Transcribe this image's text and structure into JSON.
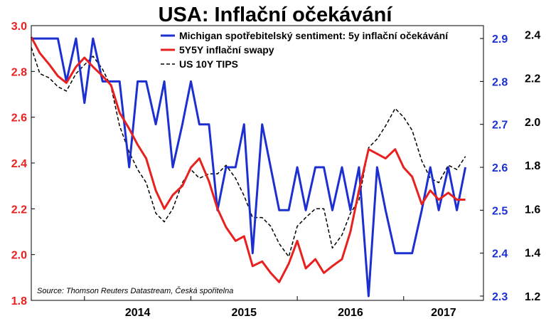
{
  "chart_data": {
    "type": "line",
    "title": "USA: Inflační očekávání",
    "source": "Source: Thomson Reuters Datastream, Česká spořitelna",
    "x_ticks": [
      "2014",
      "2015",
      "2016",
      "2017"
    ],
    "x_range": [
      2013.5,
      2017.75
    ],
    "axes": {
      "left": {
        "ticks": [
          "1.8",
          "2.0",
          "2.2",
          "2.4",
          "2.6",
          "2.8",
          "3.0"
        ],
        "range": [
          1.8,
          3.0
        ],
        "color": "#e8201e"
      },
      "right1": {
        "ticks": [
          "2.3",
          "2.4",
          "2.5",
          "2.6",
          "2.7",
          "2.8",
          "2.9"
        ],
        "range": [
          2.29,
          2.93
        ],
        "color": "#1c2fd1"
      },
      "right2": {
        "ticks": [
          "1.2",
          "1.4",
          "1.6",
          "1.8",
          "2.0",
          "2.2",
          "2.4"
        ],
        "range": [
          1.18,
          2.44
        ],
        "color": "#000000"
      }
    },
    "legend_position": "top-right",
    "grid": false,
    "series": [
      {
        "name": "Michigan spotřebitelský sentiment: 5y inflační očekávání",
        "axis": "right1",
        "color": "#1c2fd1",
        "style": "solid",
        "points": [
          [
            2013.5,
            2.9
          ],
          [
            2013.75,
            2.9
          ],
          [
            2013.83,
            2.8
          ],
          [
            2013.92,
            2.9
          ],
          [
            2014.0,
            2.75
          ],
          [
            2014.08,
            2.9
          ],
          [
            2014.17,
            2.8
          ],
          [
            2014.25,
            2.8
          ],
          [
            2014.33,
            2.8
          ],
          [
            2014.42,
            2.6
          ],
          [
            2014.5,
            2.8
          ],
          [
            2014.58,
            2.8
          ],
          [
            2014.67,
            2.7
          ],
          [
            2014.75,
            2.8
          ],
          [
            2014.83,
            2.6
          ],
          [
            2014.92,
            2.7
          ],
          [
            2015.0,
            2.8
          ],
          [
            2015.08,
            2.7
          ],
          [
            2015.17,
            2.7
          ],
          [
            2015.25,
            2.5
          ],
          [
            2015.33,
            2.6
          ],
          [
            2015.42,
            2.6
          ],
          [
            2015.5,
            2.7
          ],
          [
            2015.58,
            2.4
          ],
          [
            2015.67,
            2.7
          ],
          [
            2015.75,
            2.6
          ],
          [
            2015.83,
            2.5
          ],
          [
            2015.92,
            2.5
          ],
          [
            2016.0,
            2.6
          ],
          [
            2016.08,
            2.5
          ],
          [
            2016.17,
            2.6
          ],
          [
            2016.25,
            2.6
          ],
          [
            2016.33,
            2.5
          ],
          [
            2016.42,
            2.6
          ],
          [
            2016.5,
            2.5
          ],
          [
            2016.58,
            2.6
          ],
          [
            2016.67,
            2.3
          ],
          [
            2016.75,
            2.6
          ],
          [
            2016.83,
            2.5
          ],
          [
            2016.92,
            2.4
          ],
          [
            2017.0,
            2.4
          ],
          [
            2017.08,
            2.4
          ],
          [
            2017.17,
            2.5
          ],
          [
            2017.25,
            2.6
          ],
          [
            2017.33,
            2.5
          ],
          [
            2017.42,
            2.6
          ],
          [
            2017.5,
            2.5
          ],
          [
            2017.58,
            2.6
          ]
        ]
      },
      {
        "name": "5Y5Y inflační swapy",
        "axis": "left",
        "color": "#e8201e",
        "style": "solid",
        "points": [
          [
            2013.5,
            2.95
          ],
          [
            2013.58,
            2.88
          ],
          [
            2013.67,
            2.83
          ],
          [
            2013.75,
            2.78
          ],
          [
            2013.83,
            2.75
          ],
          [
            2013.92,
            2.82
          ],
          [
            2014.0,
            2.86
          ],
          [
            2014.08,
            2.82
          ],
          [
            2014.17,
            2.78
          ],
          [
            2014.25,
            2.74
          ],
          [
            2014.33,
            2.62
          ],
          [
            2014.42,
            2.55
          ],
          [
            2014.5,
            2.48
          ],
          [
            2014.58,
            2.42
          ],
          [
            2014.67,
            2.28
          ],
          [
            2014.75,
            2.2
          ],
          [
            2014.83,
            2.26
          ],
          [
            2014.92,
            2.3
          ],
          [
            2015.0,
            2.38
          ],
          [
            2015.08,
            2.42
          ],
          [
            2015.17,
            2.32
          ],
          [
            2015.25,
            2.2
          ],
          [
            2015.33,
            2.12
          ],
          [
            2015.42,
            2.06
          ],
          [
            2015.5,
            2.08
          ],
          [
            2015.58,
            1.95
          ],
          [
            2015.67,
            1.97
          ],
          [
            2015.75,
            1.92
          ],
          [
            2015.83,
            1.88
          ],
          [
            2015.92,
            1.96
          ],
          [
            2016.0,
            2.06
          ],
          [
            2016.08,
            1.94
          ],
          [
            2016.17,
            1.98
          ],
          [
            2016.25,
            1.92
          ],
          [
            2016.33,
            1.95
          ],
          [
            2016.42,
            1.98
          ],
          [
            2016.5,
            2.1
          ],
          [
            2016.58,
            2.28
          ],
          [
            2016.67,
            2.46
          ],
          [
            2016.75,
            2.44
          ],
          [
            2016.83,
            2.42
          ],
          [
            2016.92,
            2.46
          ],
          [
            2017.0,
            2.38
          ],
          [
            2017.08,
            2.34
          ],
          [
            2017.17,
            2.22
          ],
          [
            2017.25,
            2.28
          ],
          [
            2017.33,
            2.24
          ],
          [
            2017.42,
            2.27
          ],
          [
            2017.5,
            2.24
          ],
          [
            2017.58,
            2.24
          ]
        ]
      },
      {
        "name": "US 10Y TIPS",
        "axis": "right2",
        "color": "#000000",
        "style": "dashed",
        "points": [
          [
            2013.5,
            2.34
          ],
          [
            2013.58,
            2.22
          ],
          [
            2013.67,
            2.2
          ],
          [
            2013.75,
            2.16
          ],
          [
            2013.83,
            2.14
          ],
          [
            2013.92,
            2.22
          ],
          [
            2014.0,
            2.26
          ],
          [
            2014.08,
            2.3
          ],
          [
            2014.17,
            2.24
          ],
          [
            2014.25,
            2.16
          ],
          [
            2014.33,
            1.98
          ],
          [
            2014.42,
            1.86
          ],
          [
            2014.5,
            1.78
          ],
          [
            2014.58,
            1.72
          ],
          [
            2014.67,
            1.58
          ],
          [
            2014.75,
            1.54
          ],
          [
            2014.83,
            1.6
          ],
          [
            2014.92,
            1.72
          ],
          [
            2015.0,
            1.78
          ],
          [
            2015.08,
            1.74
          ],
          [
            2015.17,
            1.76
          ],
          [
            2015.25,
            1.76
          ],
          [
            2015.33,
            1.8
          ],
          [
            2015.42,
            1.74
          ],
          [
            2015.5,
            1.66
          ],
          [
            2015.58,
            1.56
          ],
          [
            2015.67,
            1.56
          ],
          [
            2015.75,
            1.52
          ],
          [
            2015.83,
            1.44
          ],
          [
            2015.92,
            1.38
          ],
          [
            2016.0,
            1.52
          ],
          [
            2016.08,
            1.56
          ],
          [
            2016.17,
            1.6
          ],
          [
            2016.25,
            1.6
          ],
          [
            2016.33,
            1.42
          ],
          [
            2016.42,
            1.48
          ],
          [
            2016.5,
            1.58
          ],
          [
            2016.58,
            1.64
          ],
          [
            2016.67,
            1.88
          ],
          [
            2016.75,
            1.92
          ],
          [
            2016.83,
            1.98
          ],
          [
            2016.92,
            2.06
          ],
          [
            2017.0,
            2.02
          ],
          [
            2017.08,
            1.96
          ],
          [
            2017.17,
            1.82
          ],
          [
            2017.25,
            1.74
          ],
          [
            2017.33,
            1.72
          ],
          [
            2017.42,
            1.8
          ],
          [
            2017.5,
            1.78
          ],
          [
            2017.58,
            1.84
          ]
        ]
      }
    ]
  },
  "colors": {
    "michigan_line": "#1c2fd1",
    "swaps_line": "#e8201e",
    "tips_line": "#000000",
    "left_axis_text": "#e8201e",
    "right1_axis_text": "#1c2fd1",
    "right2_axis_text": "#000000"
  }
}
